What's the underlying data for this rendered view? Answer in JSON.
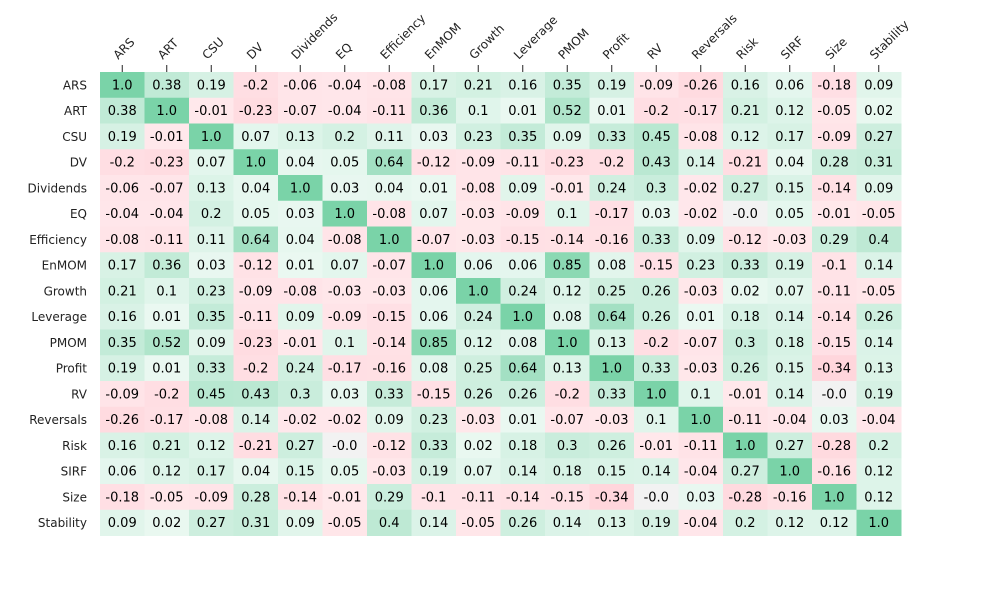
{
  "chart_data": {
    "type": "heatmap",
    "title": "",
    "xlabel": "",
    "ylabel": "",
    "grid": false,
    "legend": "none",
    "value_range": [
      -1,
      1
    ],
    "colors": {
      "positive": "#7ad3a8",
      "negative": "#ffd6dc",
      "neutral": "#f2f2f2"
    },
    "labels": [
      "ARS",
      "ART",
      "CSU",
      "DV",
      "Dividends",
      "EQ",
      "Efficiency",
      "EnMOM",
      "Growth",
      "Leverage",
      "PMOM",
      "Profit",
      "RV",
      "Reversals",
      "Risk",
      "SIRF",
      "Size",
      "Stability"
    ],
    "matrix": [
      [
        "1.0",
        "0.38",
        "0.19",
        "-0.2",
        "-0.06",
        "-0.04",
        "-0.08",
        "0.17",
        "0.21",
        "0.16",
        "0.35",
        "0.19",
        "-0.09",
        "-0.26",
        "0.16",
        "0.06",
        "-0.18",
        "0.09"
      ],
      [
        "0.38",
        "1.0",
        "-0.01",
        "-0.23",
        "-0.07",
        "-0.04",
        "-0.11",
        "0.36",
        "0.1",
        "0.01",
        "0.52",
        "0.01",
        "-0.2",
        "-0.17",
        "0.21",
        "0.12",
        "-0.05",
        "0.02"
      ],
      [
        "0.19",
        "-0.01",
        "1.0",
        "0.07",
        "0.13",
        "0.2",
        "0.11",
        "0.03",
        "0.23",
        "0.35",
        "0.09",
        "0.33",
        "0.45",
        "-0.08",
        "0.12",
        "0.17",
        "-0.09",
        "0.27"
      ],
      [
        "-0.2",
        "-0.23",
        "0.07",
        "1.0",
        "0.04",
        "0.05",
        "0.64",
        "-0.12",
        "-0.09",
        "-0.11",
        "-0.23",
        "-0.2",
        "0.43",
        "0.14",
        "-0.21",
        "0.04",
        "0.28",
        "0.31"
      ],
      [
        "-0.06",
        "-0.07",
        "0.13",
        "0.04",
        "1.0",
        "0.03",
        "0.04",
        "0.01",
        "-0.08",
        "0.09",
        "-0.01",
        "0.24",
        "0.3",
        "-0.02",
        "0.27",
        "0.15",
        "-0.14",
        "0.09"
      ],
      [
        "-0.04",
        "-0.04",
        "0.2",
        "0.05",
        "0.03",
        "1.0",
        "-0.08",
        "0.07",
        "-0.03",
        "-0.09",
        "0.1",
        "-0.17",
        "0.03",
        "-0.02",
        "-0.0",
        "0.05",
        "-0.01",
        "-0.05"
      ],
      [
        "-0.08",
        "-0.11",
        "0.11",
        "0.64",
        "0.04",
        "-0.08",
        "1.0",
        "-0.07",
        "-0.03",
        "-0.15",
        "-0.14",
        "-0.16",
        "0.33",
        "0.09",
        "-0.12",
        "-0.03",
        "0.29",
        "0.4"
      ],
      [
        "0.17",
        "0.36",
        "0.03",
        "-0.12",
        "0.01",
        "0.07",
        "-0.07",
        "1.0",
        "0.06",
        "0.06",
        "0.85",
        "0.08",
        "-0.15",
        "0.23",
        "0.33",
        "0.19",
        "-0.1",
        "0.14"
      ],
      [
        "0.21",
        "0.1",
        "0.23",
        "-0.09",
        "-0.08",
        "-0.03",
        "-0.03",
        "0.06",
        "1.0",
        "0.24",
        "0.12",
        "0.25",
        "0.26",
        "-0.03",
        "0.02",
        "0.07",
        "-0.11",
        "-0.05"
      ],
      [
        "0.16",
        "0.01",
        "0.35",
        "-0.11",
        "0.09",
        "-0.09",
        "-0.15",
        "0.06",
        "0.24",
        "1.0",
        "0.08",
        "0.64",
        "0.26",
        "0.01",
        "0.18",
        "0.14",
        "-0.14",
        "0.26"
      ],
      [
        "0.35",
        "0.52",
        "0.09",
        "-0.23",
        "-0.01",
        "0.1",
        "-0.14",
        "0.85",
        "0.12",
        "0.08",
        "1.0",
        "0.13",
        "-0.2",
        "-0.07",
        "0.3",
        "0.18",
        "-0.15",
        "0.14"
      ],
      [
        "0.19",
        "0.01",
        "0.33",
        "-0.2",
        "0.24",
        "-0.17",
        "-0.16",
        "0.08",
        "0.25",
        "0.64",
        "0.13",
        "1.0",
        "0.33",
        "-0.03",
        "0.26",
        "0.15",
        "-0.34",
        "0.13"
      ],
      [
        "-0.09",
        "-0.2",
        "0.45",
        "0.43",
        "0.3",
        "0.03",
        "0.33",
        "-0.15",
        "0.26",
        "0.26",
        "-0.2",
        "0.33",
        "1.0",
        "0.1",
        "-0.01",
        "0.14",
        "-0.0",
        "0.19"
      ],
      [
        "-0.26",
        "-0.17",
        "-0.08",
        "0.14",
        "-0.02",
        "-0.02",
        "0.09",
        "0.23",
        "-0.03",
        "0.01",
        "-0.07",
        "-0.03",
        "0.1",
        "1.0",
        "-0.11",
        "-0.04",
        "0.03",
        "-0.04"
      ],
      [
        "0.16",
        "0.21",
        "0.12",
        "-0.21",
        "0.27",
        "-0.0",
        "-0.12",
        "0.33",
        "0.02",
        "0.18",
        "0.3",
        "0.26",
        "-0.01",
        "-0.11",
        "1.0",
        "0.27",
        "-0.28",
        "0.2"
      ],
      [
        "0.06",
        "0.12",
        "0.17",
        "0.04",
        "0.15",
        "0.05",
        "-0.03",
        "0.19",
        "0.07",
        "0.14",
        "0.18",
        "0.15",
        "0.14",
        "-0.04",
        "0.27",
        "1.0",
        "-0.16",
        "0.12"
      ],
      [
        "-0.18",
        "-0.05",
        "-0.09",
        "0.28",
        "-0.14",
        "-0.01",
        "0.29",
        "-0.1",
        "-0.11",
        "-0.14",
        "-0.15",
        "-0.34",
        "-0.0",
        "0.03",
        "-0.28",
        "-0.16",
        "1.0",
        "0.12"
      ],
      [
        "0.09",
        "0.02",
        "0.27",
        "0.31",
        "0.09",
        "-0.05",
        "0.4",
        "0.14",
        "-0.05",
        "0.26",
        "0.14",
        "0.13",
        "0.19",
        "-0.04",
        "0.2",
        "0.12",
        "0.12",
        "1.0"
      ]
    ]
  }
}
